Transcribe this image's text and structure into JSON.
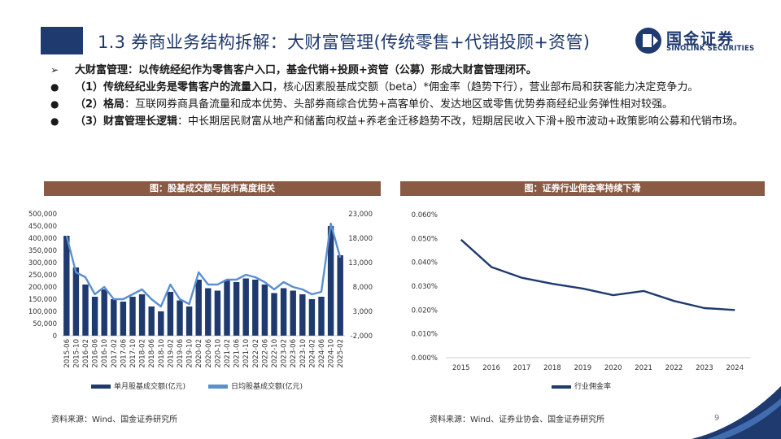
{
  "header": {
    "title": "1.3 券商业务结构拆解：大财富管理(传统零售+代销投顾+资管)",
    "logo_cn": "国金证券",
    "logo_en": "SINOLINK SECURITIES"
  },
  "bullets": [
    {
      "marker": "➢",
      "bold": "大财富管理：以传统经纪作为零售客户入口，基金代销+投顾+资管（公募）形成大财富管理闭环。",
      "text": ""
    },
    {
      "marker": "●",
      "bold": "（1）传统经纪业务是零售客户的流量入口",
      "text": "，核心因素股基成交额（beta）*佣金率（趋势下行），营业部布局和获客能力决定竞争力。"
    },
    {
      "marker": "●",
      "bold": "（2）格局",
      "text": "：互联网券商具备流量和成本优势、头部券商综合优势+高客单价、发达地区或零售优势券商经纪业务弹性相对较强。"
    },
    {
      "marker": "●",
      "bold": "（3）财富管理长逻辑",
      "text": "：中长期居民财富从地产和储蓄向权益+养老金迁移趋势不改，短期居民收入下滑+股市波动+政策影响公募和代销市场。"
    }
  ],
  "left_chart_title": "图：股基成交额与股市高度相关",
  "right_chart_title": "图：证券行业佣金率持续下滑",
  "left_source": "资料来源：Wind、国金证券研究所",
  "right_source": "资料来源：Wind、证券业协会、国金证券研究所",
  "page_number": "9",
  "colors": {
    "navy": "#1f3a6e",
    "brown": "#8a5a44",
    "bar": "#1f3a6e",
    "line": "#5b8fd0",
    "line_right": "#1f3a6e"
  },
  "chart_data": [
    {
      "type": "bar",
      "left_axis_ticks": [
        "500,000",
        "450,000",
        "400,000",
        "350,000",
        "300,000",
        "250,000",
        "200,000",
        "150,000",
        "100,000",
        "50,000",
        "0"
      ],
      "right_axis_ticks": [
        "23,000",
        "18,000",
        "13,000",
        "8,000",
        "3,000",
        "-2,000"
      ],
      "ylim": [
        0,
        500000
      ],
      "y2lim": [
        -2000,
        23000
      ],
      "categories": [
        "2015-06",
        "2015-10",
        "2016-02",
        "2016-06",
        "2016-10",
        "2017-02",
        "2017-06",
        "2017-10",
        "2018-02",
        "2018-06",
        "2018-10",
        "2019-02",
        "2019-06",
        "2019-10",
        "2020-02",
        "2020-06",
        "2020-10",
        "2021-02",
        "2021-06",
        "2021-10",
        "2022-02",
        "2022-06",
        "2022-10",
        "2023-02",
        "2023-06",
        "2023-10",
        "2024-02",
        "2024-06",
        "2024-10",
        "2025-02"
      ],
      "series": [
        {
          "name": "单月股基成交额(亿元)",
          "kind": "bar",
          "values": [
            410000,
            280000,
            210000,
            160000,
            190000,
            150000,
            140000,
            160000,
            170000,
            120000,
            100000,
            180000,
            145000,
            120000,
            230000,
            195000,
            185000,
            230000,
            220000,
            235000,
            230000,
            210000,
            175000,
            195000,
            185000,
            170000,
            150000,
            160000,
            450000,
            330000
          ]
        },
        {
          "name": "日均股基成交额(亿元)",
          "kind": "line",
          "values": [
            18500,
            11000,
            10000,
            6500,
            8000,
            5500,
            5500,
            6500,
            7500,
            5500,
            4000,
            8500,
            5500,
            4500,
            11000,
            8500,
            8500,
            9500,
            9500,
            10500,
            10000,
            9000,
            7500,
            9000,
            8000,
            7500,
            6500,
            7000,
            21000,
            14000
          ]
        }
      ]
    },
    {
      "type": "line",
      "categories": [
        "2015",
        "2016",
        "2017",
        "2018",
        "2019",
        "2020",
        "2021",
        "2022",
        "2023",
        "2024"
      ],
      "y_ticks": [
        "0.060%",
        "0.050%",
        "0.040%",
        "0.030%",
        "0.020%",
        "0.010%",
        "0.000%"
      ],
      "ylim": [
        0,
        0.06
      ],
      "series": [
        {
          "name": "行业佣金率",
          "values": [
            0.0495,
            0.038,
            0.0335,
            0.031,
            0.029,
            0.0262,
            0.028,
            0.0238,
            0.0208,
            0.02
          ]
        }
      ]
    }
  ]
}
